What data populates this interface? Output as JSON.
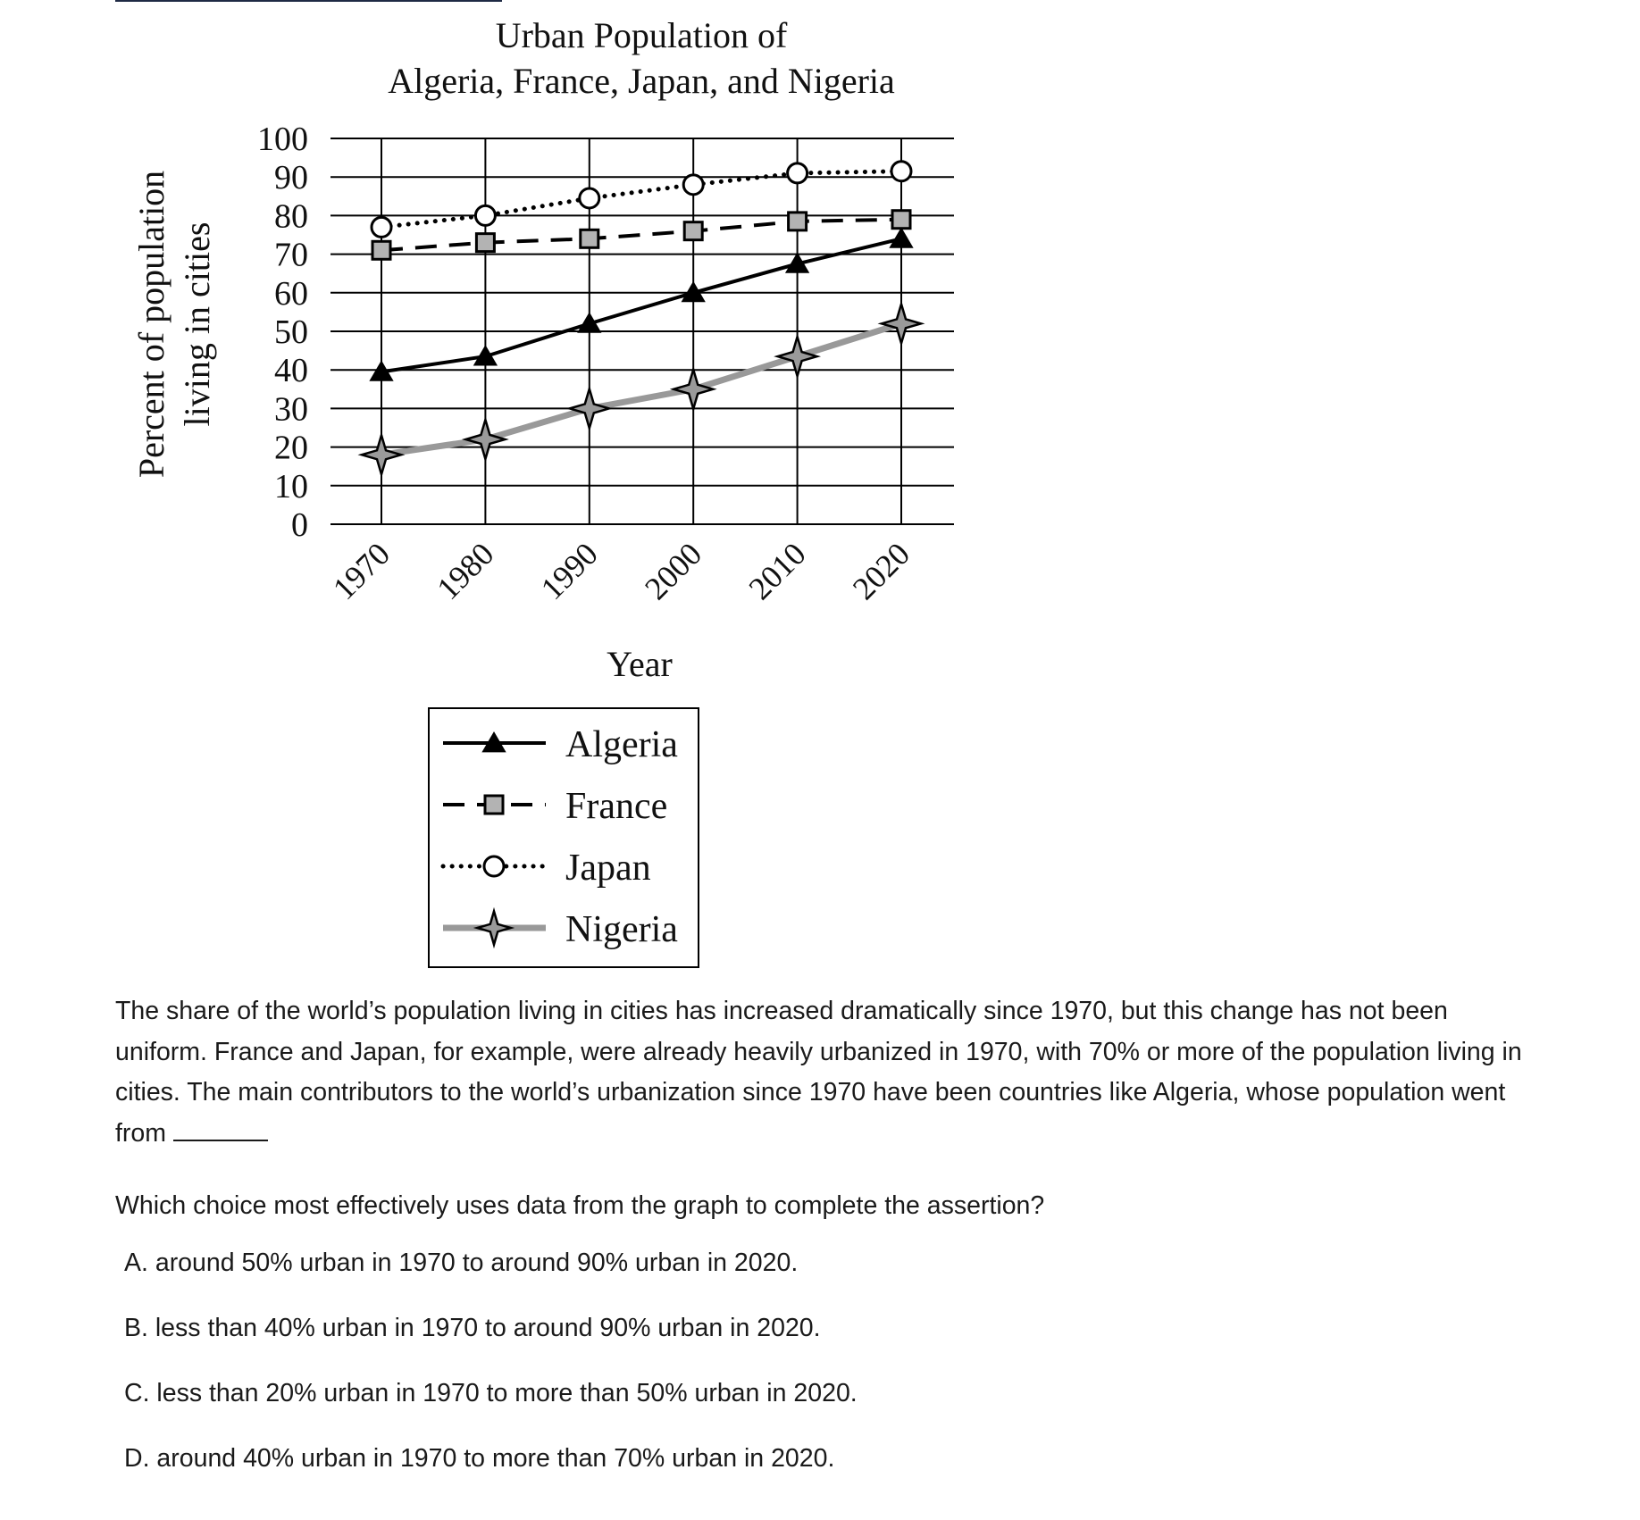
{
  "chart_data": {
    "type": "line",
    "title_lines": [
      "Urban Population of",
      "Algeria, France, Japan, and Nigeria"
    ],
    "xlabel": "Year",
    "ylabel_lines": [
      "Percent of population",
      "living in cities"
    ],
    "categories": [
      "1970",
      "1980",
      "1990",
      "2000",
      "2010",
      "2020"
    ],
    "ylim": [
      0,
      100
    ],
    "yticks": [
      "100",
      "90",
      "80",
      "70",
      "60",
      "50",
      "40",
      "30",
      "20",
      "10",
      "0"
    ],
    "grid": true,
    "legend_position": "bottom-center",
    "series": [
      {
        "name": "Algeria",
        "values": [
          39.5,
          43.5,
          52,
          60,
          67.5,
          74
        ],
        "color": "#000000",
        "marker": "triangle",
        "line": "solid"
      },
      {
        "name": "France",
        "values": [
          71,
          73,
          74,
          76,
          78.5,
          79
        ],
        "color": "#000000",
        "marker": "square",
        "line": "dashed"
      },
      {
        "name": "Japan",
        "values": [
          77,
          80,
          84.5,
          88,
          91,
          91.5
        ],
        "color": "#000000",
        "marker": "circle",
        "line": "dotted"
      },
      {
        "name": "Nigeria",
        "values": [
          18,
          22,
          30,
          35,
          43.5,
          52
        ],
        "color": "#999999",
        "marker": "star",
        "line": "solid-gray"
      }
    ]
  },
  "passage": {
    "text": "The share of the world’s population living in cities has increased dramatically since 1970, but this change has not been uniform. France and Japan, for example, were already heavily urbanized in 1970, with 70% or more of the population living in cities. The main contributors to the world’s urbanization since 1970 have been countries like Algeria, whose population went from"
  },
  "question": {
    "prompt": "Which choice most effectively uses data from the graph to complete the assertion?",
    "choices": [
      "A. around 50% urban in 1970 to around 90% urban in 2020.",
      "B. less than 40% urban in 1970 to around 90% urban in 2020.",
      "C. less than 20% urban in 1970 to more than 50% urban in 2020.",
      "D. around 40% urban in 1970 to more than 70% urban in 2020."
    ]
  }
}
